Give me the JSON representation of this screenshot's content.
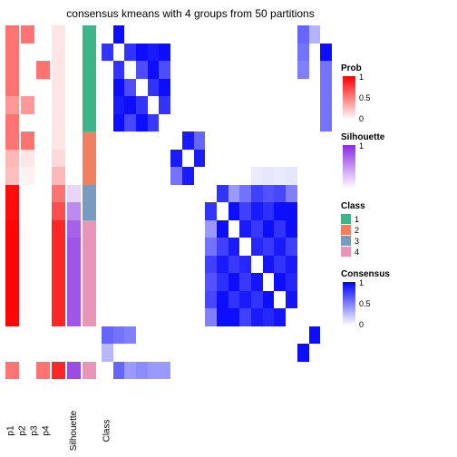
{
  "title": "consensus kmeans with 4 groups from 50 partitions",
  "grid_rows": 20,
  "grid_cols": 20,
  "row_gaps": [],
  "class_colors": {
    "1": "#3eb489",
    "2": "#f08060",
    "3": "#7a9bc0",
    "4": "#e895b8"
  },
  "annotations": {
    "columns": [
      "p1",
      "p2",
      "p3",
      "p4",
      "Silhouette",
      "Class"
    ],
    "p1": [
      0.55,
      0.55,
      0.55,
      0.55,
      0.4,
      0.55,
      0.55,
      0.28,
      0.25,
      0.95,
      0.95,
      0.98,
      0.98,
      0.98,
      0.98,
      0.98,
      0.98,
      0.0,
      0.0,
      0.55
    ],
    "p2": [
      0.55,
      0.0,
      0.0,
      0.0,
      0.4,
      0.0,
      0.55,
      0.1,
      0.05,
      0.0,
      0.0,
      0.0,
      0.0,
      0.0,
      0.0,
      0.0,
      0.0,
      0.0,
      0.0,
      0.0
    ],
    "p3": [
      0.0,
      0.0,
      0.55,
      0.0,
      0.0,
      0.0,
      0.0,
      0.0,
      0.0,
      0.0,
      0.0,
      0.0,
      0.0,
      0.0,
      0.0,
      0.0,
      0.0,
      0.0,
      0.0,
      0.55
    ],
    "p4": [
      0.1,
      0.1,
      0.1,
      0.1,
      0.1,
      0.1,
      0.1,
      0.15,
      0.28,
      0.55,
      0.7,
      0.85,
      0.85,
      0.85,
      0.85,
      0.85,
      0.85,
      0.0,
      0.0,
      0.85
    ],
    "silhouette": [
      0.0,
      0.0,
      0.0,
      0.0,
      0.0,
      0.0,
      0.0,
      0.0,
      0.0,
      0.2,
      0.55,
      0.75,
      0.8,
      0.8,
      0.8,
      0.8,
      0.8,
      0.0,
      0.0,
      0.85
    ],
    "class": [
      1,
      1,
      1,
      1,
      1,
      1,
      2,
      2,
      2,
      3,
      3,
      4,
      4,
      4,
      4,
      4,
      4,
      0,
      0,
      4
    ]
  },
  "heatmap": [
    [
      0,
      0.95,
      0,
      0,
      0,
      0,
      0,
      0,
      0,
      0,
      0,
      0,
      0,
      0,
      0,
      0,
      0,
      0.6,
      0.3,
      0
    ],
    [
      0.8,
      0,
      0.8,
      0.95,
      0.9,
      0.95,
      0,
      0,
      0,
      0,
      0,
      0,
      0,
      0,
      0,
      0,
      0,
      0.55,
      0,
      0.95
    ],
    [
      0,
      0.8,
      0,
      0.7,
      0.95,
      0.7,
      0,
      0,
      0,
      0,
      0,
      0,
      0,
      0,
      0,
      0,
      0,
      0.5,
      0,
      0.55
    ],
    [
      0,
      0.95,
      0.7,
      0,
      0.8,
      0.95,
      0,
      0,
      0,
      0,
      0,
      0,
      0,
      0,
      0,
      0,
      0,
      0,
      0,
      0.55
    ],
    [
      0,
      0.9,
      0.95,
      0.8,
      0,
      0.8,
      0,
      0,
      0,
      0,
      0,
      0,
      0,
      0,
      0,
      0,
      0,
      0,
      0,
      0.55
    ],
    [
      0,
      0.95,
      0.72,
      0.95,
      0.78,
      0,
      0,
      0,
      0,
      0,
      0,
      0,
      0,
      0,
      0,
      0,
      0,
      0,
      0,
      0.55
    ],
    [
      0,
      0,
      0,
      0,
      0,
      0,
      0,
      0.9,
      0.6,
      0,
      0,
      0,
      0,
      0,
      0,
      0,
      0,
      0,
      0,
      0
    ],
    [
      0,
      0,
      0,
      0,
      0,
      0,
      0.9,
      0,
      0.9,
      0,
      0,
      0,
      0,
      0,
      0,
      0,
      0,
      0,
      0,
      0
    ],
    [
      0,
      0,
      0,
      0,
      0,
      0,
      0.55,
      0.9,
      0,
      0,
      0,
      0,
      0,
      0.08,
      0.1,
      0.08,
      0.1,
      0,
      0,
      0
    ],
    [
      0,
      0,
      0,
      0,
      0,
      0,
      0,
      0,
      0,
      0,
      0.8,
      0.4,
      0.55,
      0.75,
      0.68,
      0.72,
      0.5,
      0,
      0,
      0
    ],
    [
      0,
      0,
      0,
      0,
      0,
      0,
      0,
      0,
      0,
      0.8,
      0,
      0.95,
      0.75,
      0.9,
      0.82,
      0.95,
      0.95,
      0,
      0,
      0
    ],
    [
      0,
      0,
      0,
      0,
      0,
      0,
      0,
      0,
      0,
      0.4,
      0.95,
      0,
      0.9,
      0.78,
      0.95,
      0.8,
      0.95,
      0,
      0,
      0
    ],
    [
      0,
      0,
      0,
      0,
      0,
      0,
      0,
      0,
      0,
      0.55,
      0.75,
      0.9,
      0,
      0.85,
      0.78,
      0.9,
      0.75,
      0,
      0,
      0
    ],
    [
      0,
      0,
      0,
      0,
      0,
      0,
      0,
      0,
      0,
      0.75,
      0.9,
      0.78,
      0.85,
      0,
      0.92,
      0.8,
      0.9,
      0,
      0,
      0
    ],
    [
      0,
      0,
      0,
      0,
      0,
      0,
      0,
      0,
      0,
      0.68,
      0.82,
      0.95,
      0.78,
      0.92,
      0,
      0.95,
      0.85,
      0,
      0,
      0
    ],
    [
      0,
      0,
      0,
      0,
      0,
      0,
      0,
      0,
      0,
      0.72,
      0.95,
      0.8,
      0.9,
      0.8,
      0.95,
      0,
      0.92,
      0,
      0,
      0
    ],
    [
      0,
      0,
      0,
      0,
      0,
      0,
      0,
      0,
      0,
      0.5,
      0.95,
      0.95,
      0.75,
      0.9,
      0.85,
      0.92,
      0,
      0,
      0,
      0
    ],
    [
      0.6,
      0.55,
      0.5,
      0,
      0,
      0,
      0,
      0,
      0,
      0,
      0,
      0,
      0,
      0,
      0,
      0,
      0,
      0,
      0.95,
      0
    ],
    [
      0.28,
      0,
      0,
      0,
      0,
      0,
      0,
      0,
      0,
      0,
      0,
      0,
      0,
      0,
      0,
      0,
      0,
      0.95,
      0,
      0
    ],
    [
      0,
      0.6,
      0.4,
      0.45,
      0.4,
      0.4,
      0,
      0,
      0,
      0,
      0,
      0,
      0,
      0,
      0,
      0,
      0,
      0,
      0,
      0
    ]
  ],
  "colors": {
    "prob_low": "#ffffff",
    "prob_high": "#ff0000",
    "sil_low": "#ffffff",
    "sil_high": "#8a2be2",
    "cons_low": "#ffffff",
    "cons_high": "#0000ff",
    "text": "#000000",
    "background": "#ffffff"
  },
  "legends": {
    "prob": {
      "title": "Prob",
      "ticks": [
        "1",
        "0.5",
        "0"
      ]
    },
    "silhouette": {
      "title": "Silhouette",
      "ticks": [
        "1",
        "",
        ""
      ]
    },
    "class": {
      "title": "Class",
      "items": [
        {
          "label": "1",
          "color": "#3eb489"
        },
        {
          "label": "2",
          "color": "#f08060"
        },
        {
          "label": "3",
          "color": "#7a9bc0"
        },
        {
          "label": "4",
          "color": "#e895b8"
        }
      ]
    },
    "consensus": {
      "title": "Consensus",
      "ticks": [
        "1",
        "0.5",
        "0"
      ]
    }
  }
}
